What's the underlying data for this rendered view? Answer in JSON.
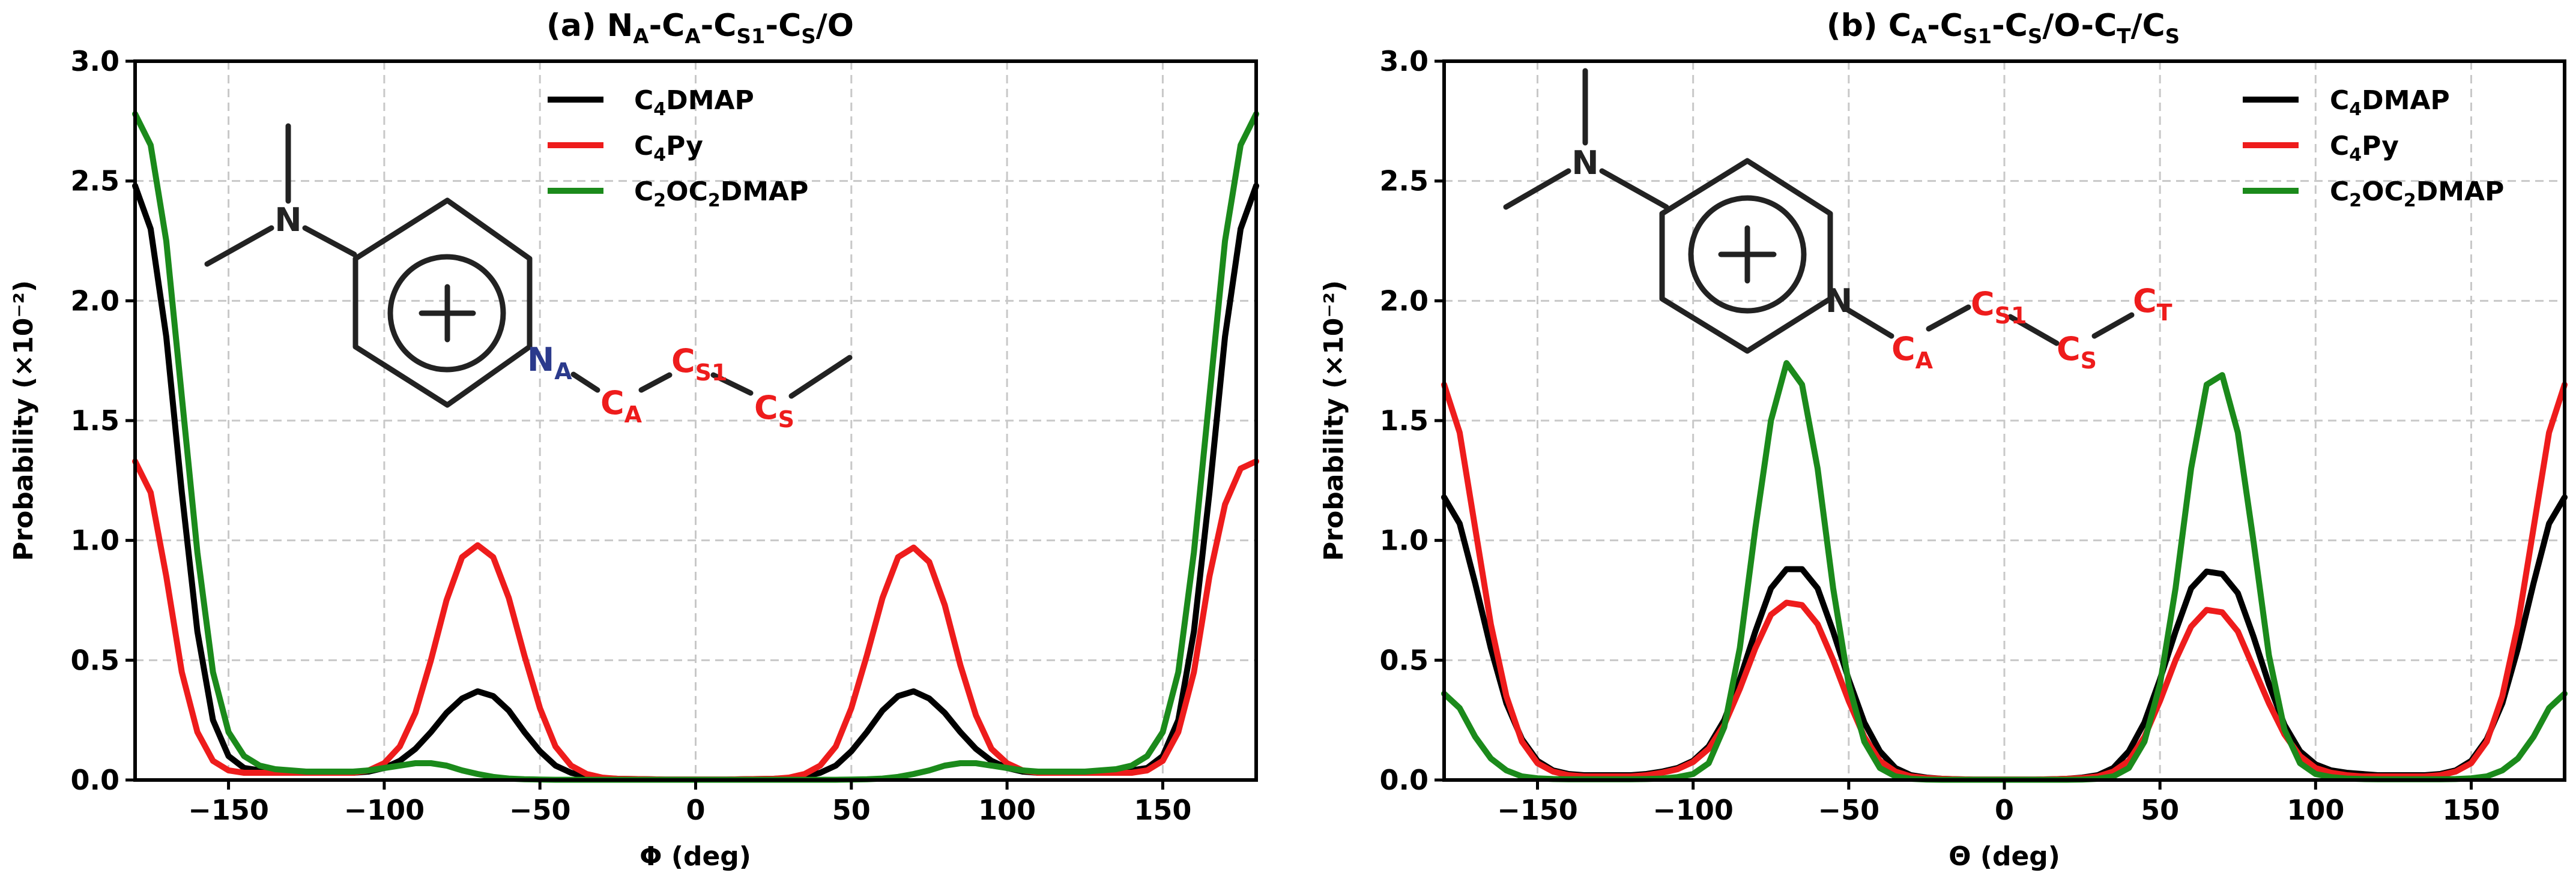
{
  "chart_data": [
    {
      "type": "line",
      "panel": "a",
      "title": "(a) N_A-C_A-C_S1-C_S/O",
      "xlabel": "Φ (deg)",
      "ylabel": "Probability (×10⁻²)",
      "xlim": [
        -180,
        180
      ],
      "ylim": [
        0,
        3.0
      ],
      "xticks": [
        -150,
        -100,
        -50,
        0,
        50,
        100,
        150
      ],
      "yticks": [
        0.0,
        0.5,
        1.0,
        1.5,
        2.0,
        2.5,
        3.0
      ],
      "grid": true,
      "legend_position": "top-right",
      "x": [
        -180,
        -175,
        -170,
        -165,
        -160,
        -155,
        -150,
        -145,
        -140,
        -135,
        -130,
        -125,
        -120,
        -115,
        -110,
        -105,
        -100,
        -95,
        -90,
        -85,
        -80,
        -75,
        -70,
        -65,
        -60,
        -55,
        -50,
        -45,
        -40,
        -35,
        -30,
        -25,
        -20,
        -15,
        -10,
        -5,
        0,
        5,
        10,
        15,
        20,
        25,
        30,
        35,
        40,
        45,
        50,
        55,
        60,
        65,
        70,
        75,
        80,
        85,
        90,
        95,
        100,
        105,
        110,
        115,
        120,
        125,
        130,
        135,
        140,
        145,
        150,
        155,
        160,
        165,
        170,
        175,
        180
      ],
      "series": [
        {
          "name": "C4DMAP",
          "color": "#000000",
          "values": [
            2.48,
            2.3,
            1.85,
            1.2,
            0.62,
            0.25,
            0.1,
            0.05,
            0.04,
            0.035,
            0.035,
            0.03,
            0.03,
            0.03,
            0.03,
            0.035,
            0.05,
            0.08,
            0.13,
            0.2,
            0.28,
            0.34,
            0.37,
            0.35,
            0.29,
            0.2,
            0.12,
            0.06,
            0.03,
            0.015,
            0.008,
            0.005,
            0.004,
            0.003,
            0.002,
            0.002,
            0.002,
            0.002,
            0.002,
            0.003,
            0.004,
            0.005,
            0.008,
            0.015,
            0.03,
            0.06,
            0.12,
            0.2,
            0.29,
            0.35,
            0.37,
            0.34,
            0.28,
            0.2,
            0.13,
            0.08,
            0.05,
            0.035,
            0.03,
            0.03,
            0.03,
            0.03,
            0.035,
            0.035,
            0.04,
            0.05,
            0.1,
            0.25,
            0.62,
            1.2,
            1.85,
            2.3,
            2.48
          ]
        },
        {
          "name": "C4Py",
          "color": "#ee1c1c",
          "values": [
            1.33,
            1.2,
            0.85,
            0.45,
            0.2,
            0.08,
            0.04,
            0.03,
            0.03,
            0.03,
            0.03,
            0.03,
            0.03,
            0.03,
            0.03,
            0.04,
            0.07,
            0.14,
            0.28,
            0.5,
            0.75,
            0.93,
            0.98,
            0.93,
            0.76,
            0.52,
            0.3,
            0.14,
            0.06,
            0.025,
            0.01,
            0.005,
            0.004,
            0.003,
            0.002,
            0.002,
            0.002,
            0.002,
            0.002,
            0.003,
            0.004,
            0.005,
            0.01,
            0.025,
            0.06,
            0.14,
            0.3,
            0.52,
            0.76,
            0.93,
            0.97,
            0.91,
            0.73,
            0.48,
            0.27,
            0.13,
            0.07,
            0.04,
            0.03,
            0.03,
            0.03,
            0.03,
            0.03,
            0.03,
            0.03,
            0.04,
            0.08,
            0.2,
            0.45,
            0.85,
            1.15,
            1.3,
            1.33
          ]
        },
        {
          "name": "C2OC2DMAP",
          "color": "#1b8a1b",
          "values": [
            2.78,
            2.65,
            2.25,
            1.6,
            0.95,
            0.45,
            0.2,
            0.1,
            0.06,
            0.045,
            0.04,
            0.035,
            0.035,
            0.035,
            0.035,
            0.04,
            0.05,
            0.06,
            0.07,
            0.07,
            0.06,
            0.04,
            0.025,
            0.013,
            0.006,
            0.003,
            0.002,
            0.001,
            0.001,
            0.001,
            0.001,
            0.001,
            0.001,
            0.001,
            0.001,
            0.001,
            0.001,
            0.001,
            0.001,
            0.001,
            0.001,
            0.001,
            0.001,
            0.001,
            0.001,
            0.001,
            0.002,
            0.003,
            0.006,
            0.013,
            0.025,
            0.04,
            0.06,
            0.07,
            0.07,
            0.06,
            0.05,
            0.04,
            0.035,
            0.035,
            0.035,
            0.035,
            0.04,
            0.045,
            0.06,
            0.1,
            0.2,
            0.45,
            0.95,
            1.6,
            2.25,
            2.65,
            2.78
          ]
        }
      ],
      "inset_labels": [
        "N",
        "N_A",
        "C_A",
        "C_S1",
        "C_S"
      ]
    },
    {
      "type": "line",
      "panel": "b",
      "title": "(b) C_A-C_S1-C_S/O-C_T/C_S",
      "xlabel": "Θ (deg)",
      "ylabel": "Probability (×10⁻²)",
      "xlim": [
        -180,
        180
      ],
      "ylim": [
        0,
        3.0
      ],
      "xticks": [
        -150,
        -100,
        -50,
        0,
        50,
        100,
        150
      ],
      "yticks": [
        0.0,
        0.5,
        1.0,
        1.5,
        2.0,
        2.5,
        3.0
      ],
      "grid": true,
      "legend_position": "top-right",
      "x": [
        -180,
        -175,
        -170,
        -165,
        -160,
        -155,
        -150,
        -145,
        -140,
        -135,
        -130,
        -125,
        -120,
        -115,
        -110,
        -105,
        -100,
        -95,
        -90,
        -85,
        -80,
        -75,
        -70,
        -65,
        -60,
        -55,
        -50,
        -45,
        -40,
        -35,
        -30,
        -25,
        -20,
        -15,
        -10,
        -5,
        0,
        5,
        10,
        15,
        20,
        25,
        30,
        35,
        40,
        45,
        50,
        55,
        60,
        65,
        70,
        75,
        80,
        85,
        90,
        95,
        100,
        105,
        110,
        115,
        120,
        125,
        130,
        135,
        140,
        145,
        150,
        155,
        160,
        165,
        170,
        175,
        180
      ],
      "series": [
        {
          "name": "C4DMAP",
          "color": "#000000",
          "values": [
            1.18,
            1.07,
            0.82,
            0.55,
            0.32,
            0.17,
            0.08,
            0.04,
            0.025,
            0.02,
            0.02,
            0.02,
            0.02,
            0.025,
            0.035,
            0.05,
            0.08,
            0.14,
            0.25,
            0.42,
            0.62,
            0.8,
            0.88,
            0.88,
            0.8,
            0.62,
            0.42,
            0.24,
            0.12,
            0.05,
            0.02,
            0.01,
            0.005,
            0.003,
            0.002,
            0.002,
            0.002,
            0.002,
            0.002,
            0.003,
            0.005,
            0.01,
            0.02,
            0.05,
            0.12,
            0.24,
            0.42,
            0.62,
            0.8,
            0.87,
            0.86,
            0.78,
            0.6,
            0.4,
            0.23,
            0.12,
            0.065,
            0.04,
            0.03,
            0.025,
            0.02,
            0.02,
            0.02,
            0.02,
            0.025,
            0.04,
            0.08,
            0.17,
            0.32,
            0.55,
            0.82,
            1.07,
            1.18
          ]
        },
        {
          "name": "C4Py",
          "color": "#ee1c1c",
          "values": [
            1.65,
            1.45,
            1.05,
            0.65,
            0.35,
            0.16,
            0.07,
            0.035,
            0.02,
            0.015,
            0.015,
            0.015,
            0.015,
            0.02,
            0.03,
            0.045,
            0.075,
            0.13,
            0.23,
            0.38,
            0.55,
            0.69,
            0.74,
            0.73,
            0.65,
            0.5,
            0.33,
            0.18,
            0.08,
            0.035,
            0.015,
            0.008,
            0.005,
            0.003,
            0.002,
            0.002,
            0.002,
            0.002,
            0.002,
            0.003,
            0.005,
            0.008,
            0.015,
            0.035,
            0.08,
            0.18,
            0.33,
            0.5,
            0.64,
            0.71,
            0.7,
            0.62,
            0.47,
            0.32,
            0.19,
            0.1,
            0.05,
            0.03,
            0.02,
            0.015,
            0.015,
            0.015,
            0.015,
            0.015,
            0.02,
            0.035,
            0.07,
            0.16,
            0.35,
            0.65,
            1.05,
            1.45,
            1.65
          ]
        },
        {
          "name": "C2OC2DMAP",
          "color": "#1b8a1b",
          "values": [
            0.36,
            0.3,
            0.18,
            0.09,
            0.04,
            0.015,
            0.007,
            0.004,
            0.003,
            0.003,
            0.003,
            0.003,
            0.003,
            0.004,
            0.006,
            0.012,
            0.025,
            0.07,
            0.22,
            0.55,
            1.05,
            1.5,
            1.74,
            1.65,
            1.3,
            0.8,
            0.4,
            0.16,
            0.05,
            0.015,
            0.005,
            0.002,
            0.001,
            0.001,
            0.001,
            0.001,
            0.001,
            0.001,
            0.001,
            0.001,
            0.001,
            0.002,
            0.005,
            0.015,
            0.05,
            0.16,
            0.4,
            0.8,
            1.3,
            1.65,
            1.69,
            1.45,
            1.0,
            0.52,
            0.21,
            0.07,
            0.025,
            0.012,
            0.006,
            0.004,
            0.003,
            0.003,
            0.003,
            0.003,
            0.003,
            0.004,
            0.007,
            0.015,
            0.04,
            0.09,
            0.18,
            0.3,
            0.36
          ]
        }
      ],
      "inset_labels": [
        "N",
        "N",
        "C_A",
        "C_S1",
        "C_S",
        "C_T"
      ]
    }
  ]
}
